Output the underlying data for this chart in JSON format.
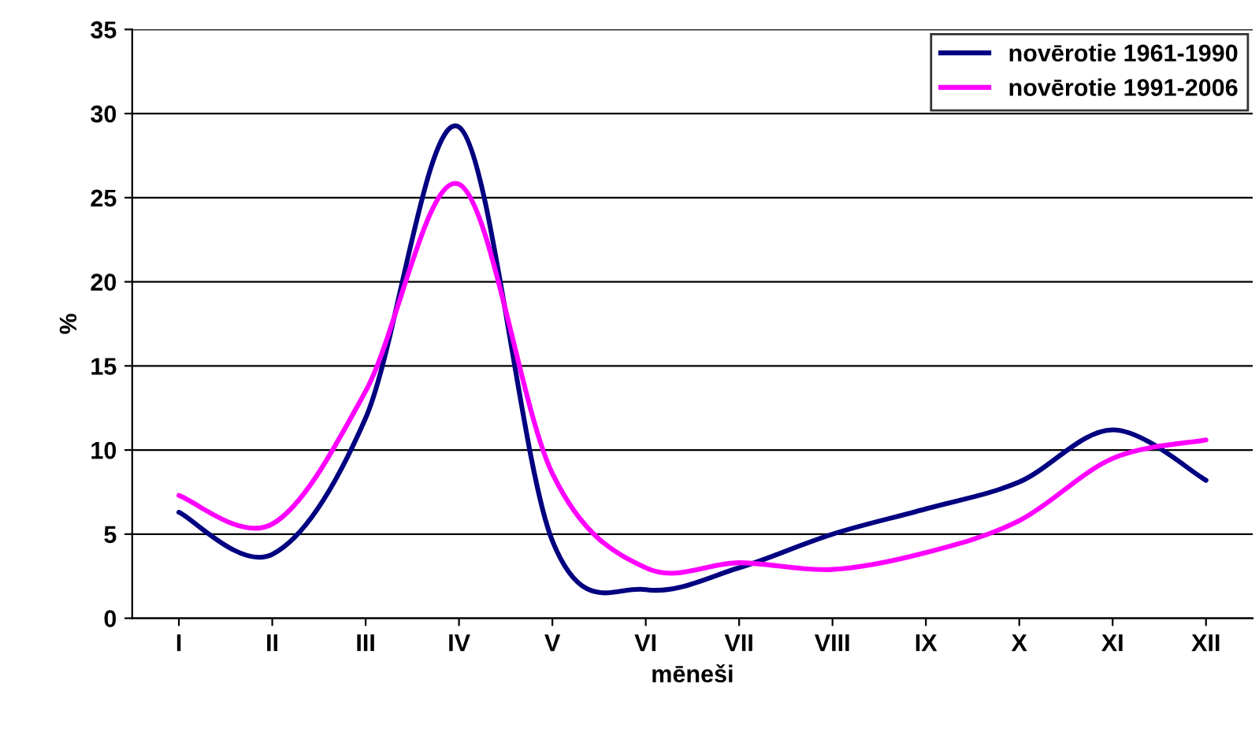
{
  "chart_data": {
    "type": "line",
    "xlabel": "mēneši",
    "ylabel": "%",
    "categories": [
      "I",
      "II",
      "III",
      "IV",
      "V",
      "VI",
      "VII",
      "VIII",
      "IX",
      "X",
      "XI",
      "XII"
    ],
    "series": [
      {
        "name": "novērotie 1961-1990",
        "color": "#000080",
        "values": [
          6.3,
          3.8,
          11.9,
          29.2,
          4.6,
          1.7,
          3.0,
          5.0,
          6.5,
          8.1,
          11.2,
          8.2
        ]
      },
      {
        "name": "novērotie 1991-2006",
        "color": "#ff00ff",
        "values": [
          7.3,
          5.6,
          13.5,
          25.8,
          8.6,
          3.0,
          3.3,
          2.9,
          3.9,
          5.8,
          9.5,
          10.6
        ]
      }
    ],
    "ylim": [
      0,
      35
    ],
    "yticks": [
      0,
      5,
      10,
      15,
      20,
      25,
      30,
      35
    ],
    "grid": "y",
    "legend": "top right",
    "marker": "none",
    "line_style": "solid"
  }
}
